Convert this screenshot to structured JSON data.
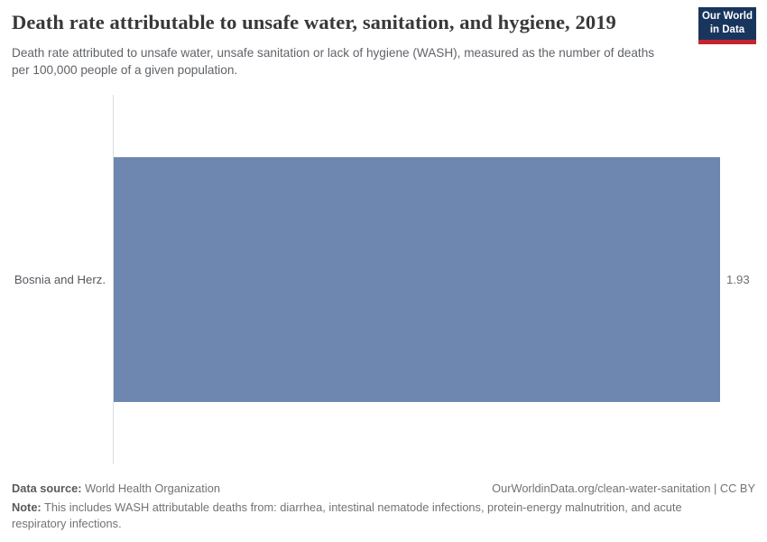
{
  "header": {
    "title": "Death rate attributable to unsafe water, sanitation, and hygiene, 2019",
    "subtitle": "Death rate attributed to unsafe water, unsafe sanitation or lack of hygiene (WASH), measured as the number of deaths per 100,000 people of a given population.",
    "logo": {
      "line1": "Our World",
      "line2": "in Data"
    }
  },
  "chart_data": {
    "type": "bar",
    "orientation": "horizontal",
    "title": "Death rate attributable to unsafe water, sanitation, and hygiene, 2019",
    "year": "2019",
    "categories": [
      "Bosnia and Herz."
    ],
    "values": [
      1.93
    ],
    "value_labels": [
      "1.93"
    ],
    "xlabel": "",
    "ylabel": "",
    "xlim": [
      0,
      1.93
    ],
    "grid": false,
    "legend": "none",
    "bar_color": "#6e87b0"
  },
  "footer": {
    "data_source_label": "Data source:",
    "data_source": " World Health Organization",
    "link": "OurWorldinData.org/clean-water-sanitation | CC BY",
    "note_label": "Note:",
    "note": " This includes WASH attributable deaths from: diarrhea, intestinal nematode infections, protein-energy malnutrition, and acute respiratory infections."
  },
  "colors": {
    "bar": "#6e87b0",
    "axis_line": "#dcdcdc",
    "title_text": "#383838",
    "subtitle_text": "#5f6368",
    "logo_background": "#18355e",
    "logo_stripe": "#c5232f"
  }
}
